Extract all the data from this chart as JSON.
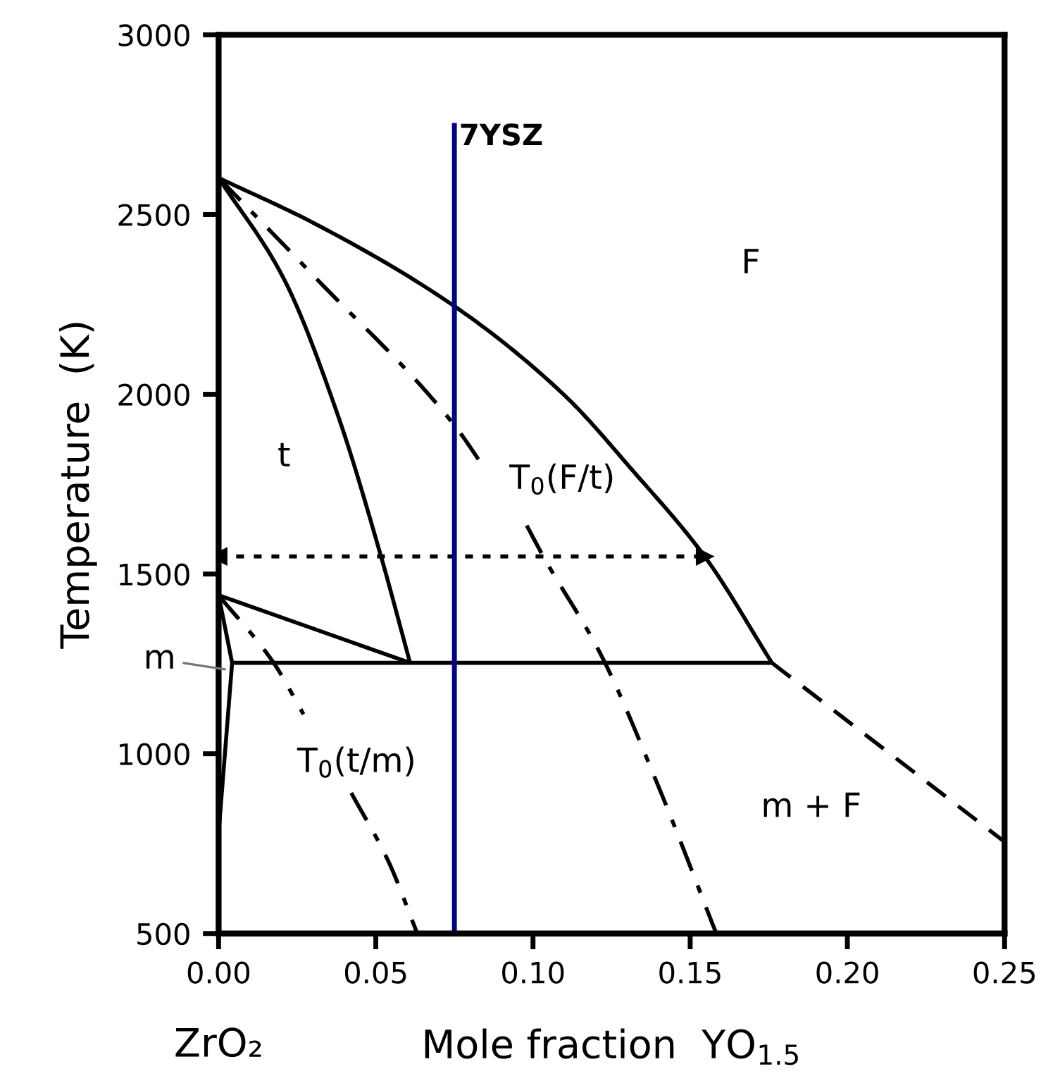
{
  "chart_data": {
    "type": "line",
    "xlabel": "Mole fraction  YO$_{1.5}$",
    "ylabel": "Temperature  (K)",
    "xlim": [
      0,
      0.25
    ],
    "ylim": [
      500,
      3000
    ],
    "xticks": [
      {
        "value": 0,
        "label": "0.00"
      },
      {
        "value": 0.05,
        "label": "0.05"
      },
      {
        "value": 0.1,
        "label": "0.10"
      },
      {
        "value": 0.15,
        "label": "0.15"
      },
      {
        "value": 0.2,
        "label": "0.20"
      },
      {
        "value": 0.25,
        "label": "0.25"
      }
    ],
    "yticks": [
      500,
      1000,
      1500,
      2000,
      2500,
      3000
    ],
    "grid": false,
    "legend": false,
    "series": [
      {
        "color": "#000000",
        "line_style": "solid",
        "x": [
          0,
          0.0301,
          0.075,
          0.1098,
          0.1322,
          0.1546,
          0.176
        ],
        "values": [
          2602,
          2477,
          2245,
          1999,
          1783,
          1549,
          1253
        ]
      },
      {
        "color": "#000000",
        "line_style": "solid",
        "x": [
          0,
          0.0207,
          0.038,
          0.0514,
          0.0609
        ],
        "values": [
          2602,
          2322,
          1940,
          1557,
          1253
        ]
      },
      {
        "color": "#000000",
        "line_style": "dashdot",
        "x": [
          0,
          0.0303,
          0.075,
          0.0852,
          0.09,
          0.098,
          0.1034,
          0.1217,
          0.14,
          0.1583
        ],
        "values": [
          2602,
          2329,
          1914,
          1786,
          null,
          1635,
          1547,
          1274,
          907,
          500
        ]
      },
      {
        "color": "#000000",
        "line_style": "dashdot",
        "x": [
          0,
          0.0175,
          0.027,
          0.035,
          0.0422,
          0.0541,
          0.0632
        ],
        "values": [
          1441,
          1253,
          1110,
          null,
          891,
          699,
          500
        ]
      },
      {
        "color": "#000000",
        "line_style": "solid",
        "x": [
          0,
          0.0609
        ],
        "values": [
          1441,
          1253
        ]
      },
      {
        "color": "#000000",
        "line_style": "solid",
        "x": [
          0.0043,
          0.176
        ],
        "values": [
          1253,
          1253
        ]
      },
      {
        "color": "#000000",
        "line_style": "solid",
        "x": [
          0,
          0.0043,
          0
        ],
        "values": [
          1441,
          1253,
          779
        ]
      },
      {
        "color": "#000000",
        "line_style": "dashed",
        "x": [
          0.176,
          0.25
        ],
        "values": [
          1253,
          755
        ]
      },
      {
        "color": "#000000",
        "line_style": "dotted",
        "marker": "triangle",
        "x": [
          0,
          0.1546
        ],
        "values": [
          1549,
          1549
        ]
      },
      {
        "name": "7YSZ",
        "color": "#00008b",
        "line_style": "solid",
        "x": [
          0.075,
          0.075
        ],
        "values": [
          500,
          2755
        ]
      }
    ],
    "annotations": [
      "t",
      "F",
      "T$_{0}$(F/t)",
      "T$_{0}$(t/m)",
      "m + F",
      {
        "text": "m",
        "x": 0.002,
        "y": 1235
      },
      "ZrO₂"
    ]
  }
}
